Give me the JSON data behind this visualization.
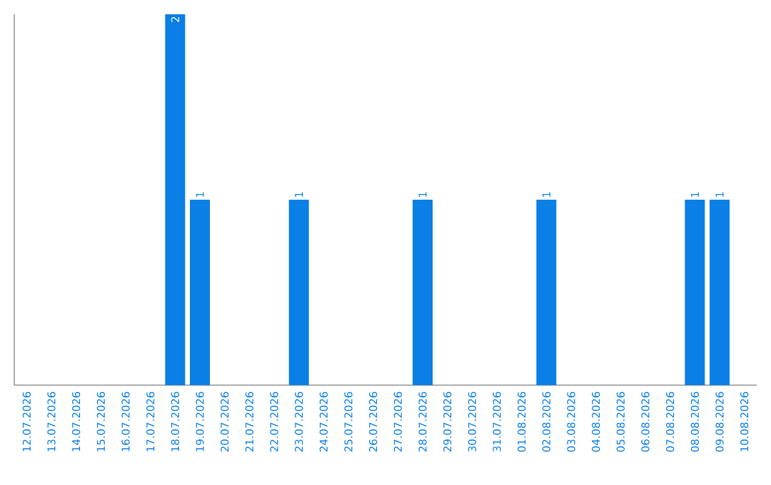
{
  "chart_data": {
    "type": "bar",
    "categories": [
      "12.07.2026",
      "13.07.2026",
      "14.07.2026",
      "15.07.2026",
      "16.07.2026",
      "17.07.2026",
      "18.07.2026",
      "19.07.2026",
      "20.07.2026",
      "21.07.2026",
      "22.07.2026",
      "23.07.2026",
      "24.07.2026",
      "25.07.2026",
      "26.07.2026",
      "27.07.2026",
      "28.07.2026",
      "29.07.2026",
      "30.07.2026",
      "31.07.2026",
      "01.08.2026",
      "02.08.2026",
      "03.08.2026",
      "04.08.2026",
      "05.08.2026",
      "06.08.2026",
      "07.08.2026",
      "08.08.2026",
      "09.08.2026",
      "10.08.2026"
    ],
    "values": [
      0,
      0,
      0,
      0,
      0,
      0,
      2,
      1,
      0,
      0,
      0,
      1,
      0,
      0,
      0,
      0,
      1,
      0,
      0,
      0,
      0,
      1,
      0,
      0,
      0,
      0,
      0,
      1,
      1,
      0
    ],
    "value_labels": [
      null,
      null,
      null,
      null,
      null,
      null,
      "2",
      "1",
      null,
      null,
      null,
      "1",
      null,
      null,
      null,
      null,
      "1",
      null,
      null,
      null,
      null,
      "1",
      null,
      null,
      null,
      null,
      null,
      "1",
      "1",
      null
    ],
    "color": "#0a7fe6"
  }
}
